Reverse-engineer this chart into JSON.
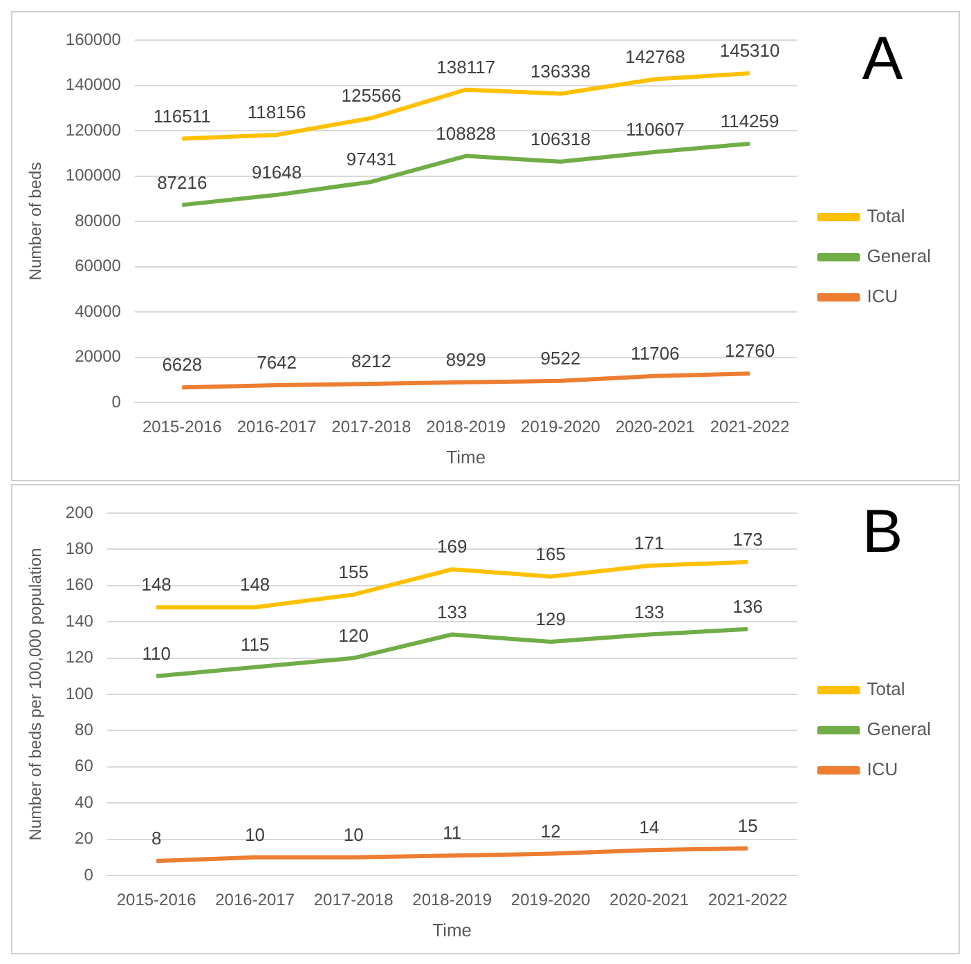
{
  "chart_data": [
    {
      "type": "line",
      "annotations": [
        "A"
      ],
      "xlabel": "Time",
      "ylabel": "Number of beds",
      "categories": [
        "2015-2016",
        "2016-2017",
        "2017-2018",
        "2018-2019",
        "2019-2020",
        "2020-2021",
        "2021-2022"
      ],
      "series": [
        {
          "name": "Total",
          "color": "#ffc000",
          "values": [
            116511,
            118156,
            125566,
            138117,
            136338,
            142768,
            145310
          ]
        },
        {
          "name": "General",
          "color": "#70ad47",
          "values": [
            87216,
            91648,
            97431,
            108828,
            106318,
            110607,
            114259
          ]
        },
        {
          "name": "ICU",
          "color": "#ed7d31",
          "values": [
            6628,
            7642,
            8212,
            8929,
            9522,
            11706,
            12760
          ]
        }
      ],
      "ylim": [
        0,
        160000
      ],
      "yticks": [
        0,
        20000,
        40000,
        60000,
        80000,
        100000,
        120000,
        140000,
        160000
      ],
      "grid": "y",
      "legend": "right",
      "marker": "none",
      "line_style": "solid",
      "data_labels": true
    },
    {
      "type": "line",
      "annotations": [
        "B"
      ],
      "xlabel": "Time",
      "ylabel": "Number of beds per 100,000 population",
      "categories": [
        "2015-2016",
        "2016-2017",
        "2017-2018",
        "2018-2019",
        "2019-2020",
        "2020-2021",
        "2021-2022"
      ],
      "series": [
        {
          "name": "Total",
          "color": "#ffc000",
          "values": [
            148,
            148,
            155,
            169,
            165,
            171,
            173
          ]
        },
        {
          "name": "General",
          "color": "#70ad47",
          "values": [
            110,
            115,
            120,
            133,
            129,
            133,
            136
          ]
        },
        {
          "name": "ICU",
          "color": "#ed7d31",
          "values": [
            8,
            10,
            10,
            11,
            12,
            14,
            15
          ]
        }
      ],
      "ylim": [
        0,
        200
      ],
      "yticks": [
        0,
        20,
        40,
        60,
        80,
        100,
        120,
        140,
        160,
        180,
        200
      ],
      "grid": "y",
      "legend": "right",
      "marker": "none",
      "line_style": "solid",
      "data_labels": true
    }
  ]
}
